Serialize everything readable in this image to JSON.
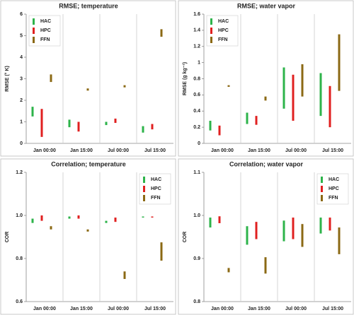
{
  "chart_data": [
    {
      "type": "range-bar",
      "title": "RMSE; temperature",
      "ylabel": "RMSE (° K)",
      "categories": [
        "Jan 00:00",
        "Jan 15:00",
        "Jul 00:00",
        "Jul 15:00"
      ],
      "series": [
        {
          "name": "HAC",
          "color": "#2db34a",
          "values": [
            [
              1.25,
              1.7
            ],
            [
              0.75,
              1.1
            ],
            [
              0.85,
              1.0
            ],
            [
              0.5,
              0.8
            ]
          ]
        },
        {
          "name": "HPC",
          "color": "#e02020",
          "values": [
            [
              0.3,
              1.6
            ],
            [
              0.55,
              1.0
            ],
            [
              0.95,
              1.15
            ],
            [
              0.65,
              0.9
            ]
          ]
        },
        {
          "name": "FFN",
          "color": "#8b6914",
          "values": [
            [
              2.85,
              3.2
            ],
            [
              2.45,
              2.55
            ],
            [
              2.6,
              2.7
            ],
            [
              4.95,
              5.3
            ]
          ]
        }
      ],
      "ylim": [
        0,
        6
      ],
      "yticks": [
        0,
        1,
        2,
        3,
        4,
        5,
        6
      ],
      "legend": "upper left"
    },
    {
      "type": "range-bar",
      "title": "RMSE; water vapor",
      "ylabel": "RMSE (g kg⁻¹)",
      "categories": [
        "Jan 00:00",
        "Jan 15:00",
        "Jul 00:00",
        "Jul 15:00"
      ],
      "series": [
        {
          "name": "HAC",
          "color": "#2db34a",
          "values": [
            [
              0.16,
              0.28
            ],
            [
              0.24,
              0.38
            ],
            [
              0.43,
              0.94
            ],
            [
              0.34,
              0.87
            ]
          ]
        },
        {
          "name": "HPC",
          "color": "#e02020",
          "values": [
            [
              0.1,
              0.22
            ],
            [
              0.23,
              0.34
            ],
            [
              0.28,
              0.85
            ],
            [
              0.2,
              0.71
            ]
          ]
        },
        {
          "name": "FFN",
          "color": "#8b6914",
          "values": [
            [
              0.7,
              0.72
            ],
            [
              0.53,
              0.58
            ],
            [
              0.58,
              0.98
            ],
            [
              0.65,
              1.35
            ]
          ]
        }
      ],
      "ylim": [
        0,
        1.6
      ],
      "yticks": [
        0,
        0.2,
        0.4,
        0.6,
        0.8,
        1,
        1.2,
        1.4,
        1.6
      ],
      "legend": "upper left"
    },
    {
      "type": "range-bar",
      "title": "Correlation; temperature",
      "ylabel": "COR",
      "categories": [
        "Jan 00:00",
        "Jan 15:00",
        "Jul 00:00",
        "Jul 15:00"
      ],
      "series": [
        {
          "name": "HAC",
          "color": "#2db34a",
          "values": [
            [
              0.965,
              0.985
            ],
            [
              0.985,
              0.995
            ],
            [
              0.965,
              0.975
            ],
            [
              0.99,
              0.995
            ]
          ]
        },
        {
          "name": "HPC",
          "color": "#e02020",
          "values": [
            [
              0.975,
              1.0
            ],
            [
              0.985,
              1.0
            ],
            [
              0.97,
              0.99
            ],
            [
              0.99,
              0.995
            ]
          ]
        },
        {
          "name": "FFN",
          "color": "#8b6914",
          "values": [
            [
              0.935,
              0.95
            ],
            [
              0.925,
              0.935
            ],
            [
              0.705,
              0.74
            ],
            [
              0.79,
              0.875
            ]
          ]
        }
      ],
      "ylim": [
        0.6,
        1.2
      ],
      "yticks": [
        0.6,
        0.8,
        {
          "value": 1,
          "label": "1.0"
        },
        1.2
      ],
      "legend": "upper right"
    },
    {
      "type": "range-bar",
      "title": "Correlation; water vapor",
      "ylabel": "COR",
      "categories": [
        "Jan 00:00",
        "Jan 15:00",
        "Jul 00:00",
        "Jul 15:00"
      ],
      "series": [
        {
          "name": "HAC",
          "color": "#2db34a",
          "values": [
            [
              0.972,
              0.995
            ],
            [
              0.932,
              0.975
            ],
            [
              0.94,
              0.988
            ],
            [
              0.958,
              0.995
            ]
          ]
        },
        {
          "name": "HPC",
          "color": "#e02020",
          "values": [
            [
              0.982,
              0.998
            ],
            [
              0.945,
              0.985
            ],
            [
              0.945,
              0.995
            ],
            [
              0.965,
              0.995
            ]
          ]
        },
        {
          "name": "FFN",
          "color": "#8b6914",
          "values": [
            [
              0.868,
              0.878
            ],
            [
              0.865,
              0.903
            ],
            [
              0.927,
              0.98
            ],
            [
              0.91,
              0.972
            ]
          ]
        }
      ],
      "ylim": [
        0.8,
        1.1
      ],
      "yticks": [
        0.8,
        0.9,
        {
          "value": 1,
          "label": "1.0"
        },
        1.1
      ],
      "legend": "upper right"
    }
  ]
}
